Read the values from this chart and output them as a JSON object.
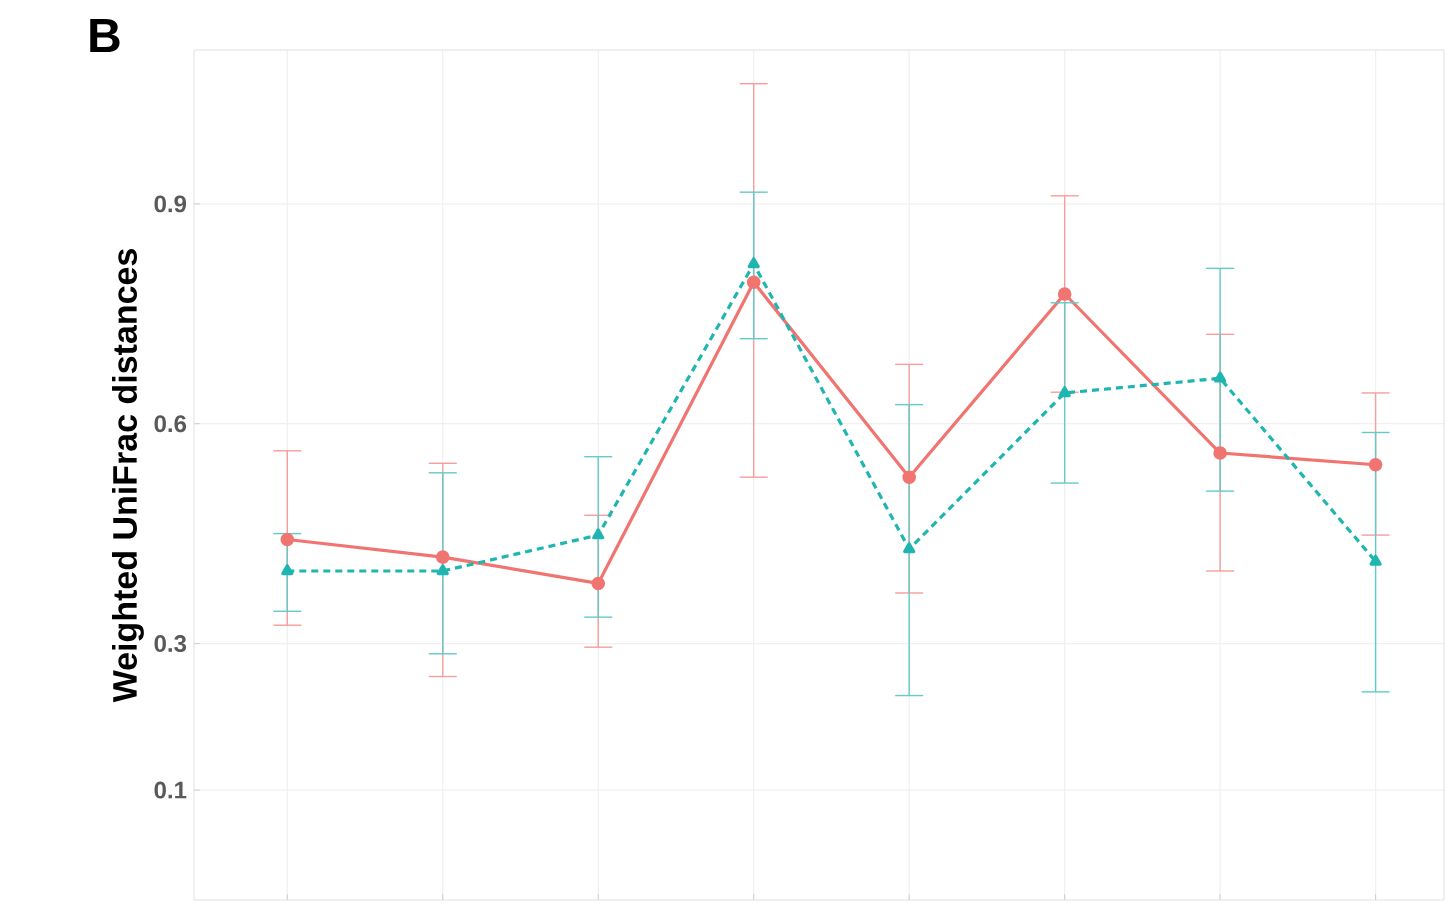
{
  "chart_data": {
    "type": "line",
    "title": "B",
    "ylabel": "Weighted UniFrac distances",
    "categories": [
      null,
      null,
      null,
      null,
      null,
      null,
      null,
      null
    ],
    "series": [
      {
        "color": "#f07470",
        "line_style": "solid",
        "marker": "circle",
        "values": [
          0.442,
          0.418,
          0.382,
          0.793,
          0.527,
          0.777,
          0.56,
          0.544
        ],
        "errors": [
          [
            0.325,
            0.563
          ],
          [
            0.255,
            0.546
          ],
          [
            0.295,
            0.475
          ],
          [
            0.527,
            1.064
          ],
          [
            0.369,
            0.681
          ],
          [
            0.643,
            0.911
          ],
          [
            0.399,
            0.722
          ],
          [
            0.448,
            0.642
          ]
        ]
      },
      {
        "color": "#1fb5b0",
        "line_style": "dashed",
        "marker": "triangle",
        "values": [
          0.399,
          0.399,
          0.448,
          0.818,
          0.429,
          0.642,
          0.662,
          0.412
        ],
        "errors": [
          [
            0.344,
            0.45
          ],
          [
            0.286,
            0.533
          ],
          [
            0.336,
            0.555
          ],
          [
            0.716,
            0.916
          ],
          [
            0.229,
            0.626
          ],
          [
            0.519,
            0.765
          ],
          [
            0.508,
            0.812
          ],
          [
            0.234,
            0.588
          ]
        ]
      }
    ],
    "ylim": [
      -0.05,
      1.11
    ],
    "yticks": [
      0.1,
      0.3,
      0.6,
      0.9
    ],
    "grid": true
  }
}
